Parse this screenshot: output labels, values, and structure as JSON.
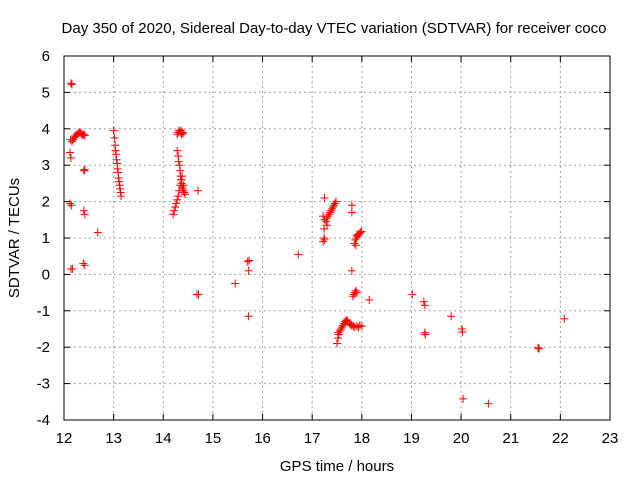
{
  "chart_data": {
    "type": "scatter",
    "title": "Day 350 of 2020, Sidereal Day-to-day VTEC variation (SDTVAR) for receiver coco",
    "xlabel": "GPS time / hours",
    "ylabel": "SDTVAR / TECUs",
    "xlim": [
      12,
      23
    ],
    "ylim": [
      -4,
      6
    ],
    "xticks": [
      "12",
      "13",
      "14",
      "15",
      "16",
      "17",
      "18",
      "19",
      "20",
      "21",
      "22",
      "23"
    ],
    "yticks": [
      "-4",
      "-3",
      "-2",
      "-1",
      "0",
      "1",
      "2",
      "3",
      "4",
      "5",
      "6"
    ],
    "grid": true,
    "marker": "+",
    "color": "#ff0000",
    "series": [
      {
        "name": "SDTVAR",
        "points": [
          [
            12.14,
            5.25
          ],
          [
            12.16,
            5.22
          ],
          [
            12.13,
            3.7
          ],
          [
            12.16,
            3.65
          ],
          [
            12.18,
            3.7
          ],
          [
            12.2,
            3.75
          ],
          [
            12.22,
            3.8
          ],
          [
            12.24,
            3.8
          ],
          [
            12.26,
            3.85
          ],
          [
            12.28,
            3.85
          ],
          [
            12.3,
            3.9
          ],
          [
            12.32,
            3.9
          ],
          [
            12.34,
            3.88
          ],
          [
            12.36,
            3.85
          ],
          [
            12.38,
            3.82
          ],
          [
            12.4,
            3.85
          ],
          [
            12.42,
            3.82
          ],
          [
            12.12,
            3.35
          ],
          [
            12.14,
            3.2
          ],
          [
            12.12,
            1.95
          ],
          [
            12.15,
            1.9
          ],
          [
            12.14,
            0.15
          ],
          [
            12.17,
            0.15
          ],
          [
            12.4,
            2.85
          ],
          [
            12.42,
            2.88
          ],
          [
            12.4,
            1.75
          ],
          [
            12.42,
            1.65
          ],
          [
            12.39,
            0.3
          ],
          [
            12.42,
            0.25
          ],
          [
            12.68,
            1.15
          ],
          [
            13.0,
            3.95
          ],
          [
            13.02,
            3.75
          ],
          [
            13.03,
            3.55
          ],
          [
            13.04,
            3.4
          ],
          [
            13.05,
            3.3
          ],
          [
            13.06,
            3.15
          ],
          [
            13.07,
            3.05
          ],
          [
            13.08,
            2.9
          ],
          [
            13.09,
            2.8
          ],
          [
            13.1,
            2.65
          ],
          [
            13.11,
            2.55
          ],
          [
            13.12,
            2.45
          ],
          [
            13.13,
            2.35
          ],
          [
            13.14,
            2.25
          ],
          [
            13.15,
            2.15
          ],
          [
            14.28,
            3.85
          ],
          [
            14.3,
            3.9
          ],
          [
            14.32,
            3.95
          ],
          [
            14.34,
            3.9
          ],
          [
            14.36,
            3.95
          ],
          [
            14.38,
            3.9
          ],
          [
            14.4,
            3.88
          ],
          [
            14.37,
            3.85
          ],
          [
            14.28,
            3.4
          ],
          [
            14.3,
            3.25
          ],
          [
            14.31,
            3.1
          ],
          [
            14.33,
            3.0
          ],
          [
            14.34,
            2.85
          ],
          [
            14.35,
            2.7
          ],
          [
            14.36,
            2.6
          ],
          [
            14.37,
            2.5
          ],
          [
            14.38,
            2.4
          ],
          [
            14.39,
            2.35
          ],
          [
            14.4,
            2.3
          ],
          [
            14.42,
            2.25
          ],
          [
            14.44,
            2.2
          ],
          [
            14.41,
            2.45
          ],
          [
            14.2,
            1.65
          ],
          [
            14.22,
            1.75
          ],
          [
            14.24,
            1.85
          ],
          [
            14.26,
            1.95
          ],
          [
            14.28,
            2.05
          ],
          [
            14.3,
            2.15
          ],
          [
            14.32,
            2.3
          ],
          [
            14.34,
            2.45
          ],
          [
            14.36,
            2.6
          ],
          [
            14.38,
            2.7
          ],
          [
            14.7,
            2.3
          ],
          [
            14.68,
            -0.55
          ],
          [
            14.71,
            -0.55
          ],
          [
            15.45,
            -0.25
          ],
          [
            15.7,
            0.35
          ],
          [
            15.73,
            0.38
          ],
          [
            15.72,
            0.1
          ],
          [
            15.72,
            -1.15
          ],
          [
            16.72,
            0.55
          ],
          [
            17.25,
            2.1
          ],
          [
            17.22,
            1.6
          ],
          [
            17.25,
            1.5
          ],
          [
            17.28,
            1.45
          ],
          [
            17.3,
            1.55
          ],
          [
            17.32,
            1.6
          ],
          [
            17.34,
            1.65
          ],
          [
            17.36,
            1.7
          ],
          [
            17.38,
            1.75
          ],
          [
            17.4,
            1.8
          ],
          [
            17.42,
            1.85
          ],
          [
            17.44,
            1.9
          ],
          [
            17.46,
            1.95
          ],
          [
            17.48,
            2.0
          ],
          [
            17.3,
            1.35
          ],
          [
            17.24,
            1.25
          ],
          [
            17.22,
            0.9
          ],
          [
            17.24,
            1.0
          ],
          [
            17.25,
            0.95
          ],
          [
            17.8,
            1.9
          ],
          [
            17.8,
            1.7
          ],
          [
            17.8,
            0.1
          ],
          [
            17.85,
            0.85
          ],
          [
            17.87,
            0.95
          ],
          [
            17.89,
            1.0
          ],
          [
            17.91,
            1.05
          ],
          [
            17.93,
            1.1
          ],
          [
            17.95,
            1.12
          ],
          [
            17.97,
            1.15
          ],
          [
            17.99,
            1.18
          ],
          [
            17.88,
            0.8
          ],
          [
            17.9,
            1.08
          ],
          [
            17.82,
            -0.6
          ],
          [
            17.84,
            -0.55
          ],
          [
            17.86,
            -0.5
          ],
          [
            17.88,
            -0.45
          ],
          [
            17.9,
            -0.5
          ],
          [
            17.5,
            -1.9
          ],
          [
            17.52,
            -1.75
          ],
          [
            17.54,
            -1.65
          ],
          [
            17.56,
            -1.55
          ],
          [
            17.58,
            -1.5
          ],
          [
            17.6,
            -1.45
          ],
          [
            17.62,
            -1.4
          ],
          [
            17.64,
            -1.35
          ],
          [
            17.66,
            -1.3
          ],
          [
            17.68,
            -1.28
          ],
          [
            17.7,
            -1.25
          ],
          [
            17.72,
            -1.3
          ],
          [
            17.75,
            -1.35
          ],
          [
            17.78,
            -1.38
          ],
          [
            17.8,
            -1.4
          ],
          [
            17.83,
            -1.42
          ],
          [
            17.86,
            -1.45
          ],
          [
            17.9,
            -1.42
          ],
          [
            17.93,
            -1.45
          ],
          [
            17.96,
            -1.4
          ],
          [
            18.0,
            -1.42
          ],
          [
            17.52,
            -1.6
          ],
          [
            18.15,
            -0.7
          ],
          [
            19.02,
            -0.55
          ],
          [
            19.25,
            -0.75
          ],
          [
            19.27,
            -0.85
          ],
          [
            19.27,
            -1.6
          ],
          [
            19.28,
            -1.65
          ],
          [
            19.8,
            -1.15
          ],
          [
            20.02,
            -1.5
          ],
          [
            20.03,
            -1.58
          ],
          [
            20.04,
            -3.42
          ],
          [
            20.55,
            -3.55
          ],
          [
            21.55,
            -2.02
          ],
          [
            21.57,
            -2.04
          ],
          [
            22.08,
            -1.22
          ]
        ]
      }
    ]
  }
}
